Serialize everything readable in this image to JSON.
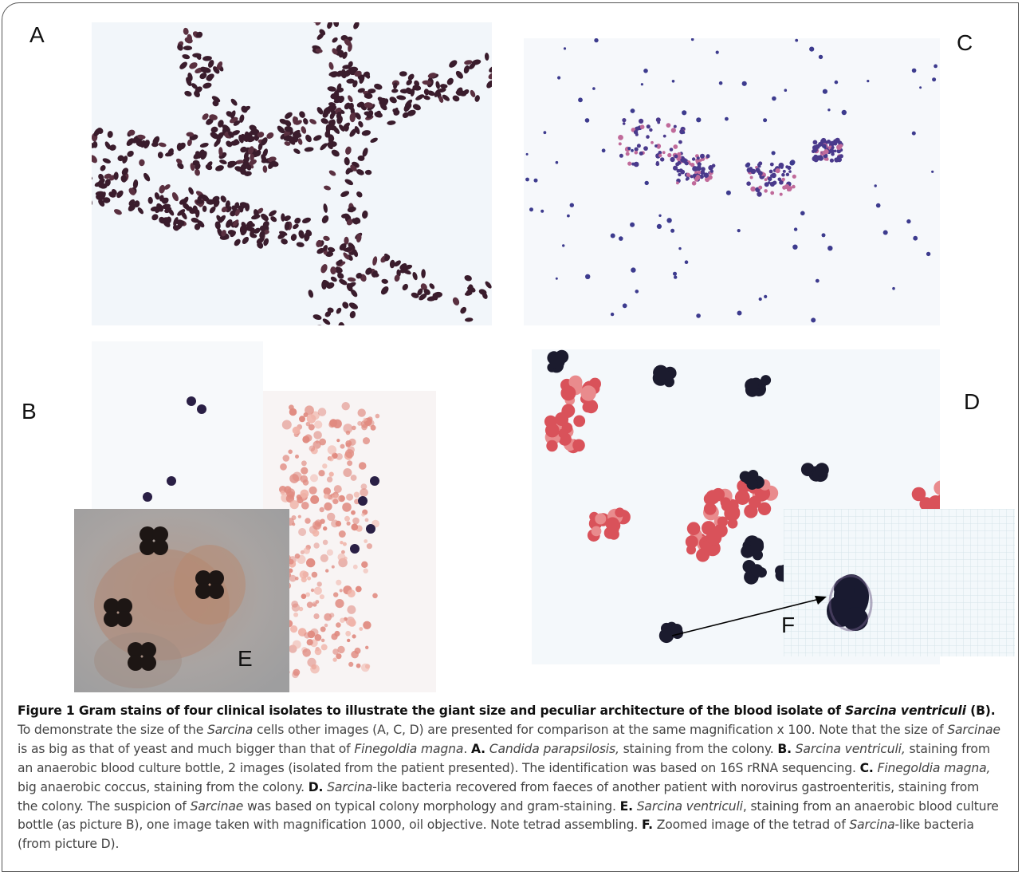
{
  "panels": {
    "A": "A",
    "B": "B",
    "C": "C",
    "D": "D",
    "E": "E",
    "F": "F"
  },
  "caption": {
    "t1": "Figure 1 Gram stains of four clinical isolates to illustrate the giant size and peculiar architecture of the blood isolate of ",
    "t2": "Sarcina ventriculi",
    "t3": " (B).",
    "t4": " To demonstrate the size of the ",
    "t5": "Sarcina",
    "t6": " cells other images (A, C, D) are presented for comparison at the same magnification x 100. Note that the size of ",
    "t7": "Sarcinae",
    "t8": " is as big as that of yeast and much bigger than that of ",
    "t9": "Finegoldia magna",
    "t10": ". ",
    "t11": "A.",
    "t12": " ",
    "t13": "Candida parapsilosis,",
    "t14": " staining from the colony. ",
    "t15": "B.",
    "t16": " ",
    "t17": "Sarcina ventriculi,",
    "t18": " staining from an anaerobic blood culture bottle, 2 images (isolated from the patient presented). The identification was based on 16S rRNA sequencing. ",
    "t19": "C.",
    "t20": " ",
    "t21": "Finegoldia magna,",
    "t22": " big anaerobic coccus, staining from the colony. ",
    "t23": "D.",
    "t24": " ",
    "t25": "Sarcina",
    "t26": "-like bacteria recovered from faeces of another patient with norovirus gastroenteritis, staining from the colony. The suspicion of ",
    "t27": "Sarcinae",
    "t28": " was based on typical colony morphology and gram-staining. ",
    "t29": "E.",
    "t30": " ",
    "t31": "Sarcina ventriculi",
    "t32": ", staining from an anaerobic blood culture bottle (as picture B), one image taken with magnification 1000, oil objective. Note tetrad assembling. ",
    "t33": "F.",
    "t34": " Zoomed image of the tetrad of ",
    "t35": "Sarcina",
    "t36": "-like bacteria (from picture D)."
  }
}
